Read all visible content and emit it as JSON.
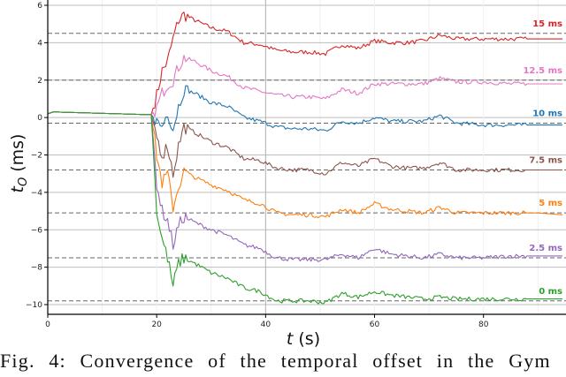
{
  "chart_data": {
    "type": "line",
    "title": "",
    "xlabel": "t (s)",
    "ylabel": "t_O (ms)",
    "xlim": [
      0,
      94.5
    ],
    "ylim": [
      -10.5,
      6.1
    ],
    "xticks": [
      0,
      20,
      40,
      60,
      80
    ],
    "yticks": [
      6,
      4,
      2,
      0,
      -2,
      -4,
      -6,
      -8,
      -10
    ],
    "grid": true,
    "legend": "inline labels at right edge",
    "x": [
      0,
      1,
      19,
      20,
      21,
      22,
      23,
      24,
      25,
      27,
      30,
      33,
      36,
      39,
      42,
      45,
      48,
      51,
      54,
      57,
      60,
      63,
      66,
      69,
      72,
      75,
      80,
      85,
      90,
      94.5
    ],
    "series": [
      {
        "name": "15 ms",
        "color": "#d62728",
        "target": 4.5,
        "values": [
          0.2,
          0.3,
          0.15,
          1.2,
          2.5,
          3.0,
          4.2,
          5.2,
          5.5,
          5.2,
          4.8,
          4.6,
          4.0,
          3.9,
          3.6,
          3.5,
          3.5,
          3.4,
          3.9,
          3.7,
          4.1,
          4.0,
          4.0,
          4.1,
          4.4,
          4.2,
          4.2,
          4.2,
          4.2,
          4.2
        ]
      },
      {
        "name": "12.5 ms",
        "color": "#e377c2",
        "target": 2.0,
        "values": [
          0.2,
          0.3,
          0.15,
          0.5,
          1.3,
          1.8,
          2.0,
          2.7,
          3.2,
          3.0,
          2.5,
          2.2,
          1.6,
          1.4,
          1.2,
          1.1,
          1.1,
          1.0,
          1.5,
          1.3,
          1.8,
          1.8,
          1.8,
          1.8,
          2.1,
          1.9,
          1.9,
          1.8,
          1.8,
          1.8
        ]
      },
      {
        "name": "10 ms",
        "color": "#1f77b4",
        "target": -0.3,
        "values": [
          0.2,
          0.3,
          0.15,
          -0.2,
          -0.5,
          0.3,
          -0.6,
          0.6,
          1.5,
          1.3,
          0.8,
          0.6,
          0.0,
          -0.2,
          -0.5,
          -0.6,
          -0.6,
          -0.7,
          -0.2,
          -0.3,
          0.0,
          -0.2,
          -0.2,
          -0.2,
          0.1,
          -0.3,
          -0.4,
          -0.4,
          -0.4,
          -0.4
        ]
      },
      {
        "name": "7.5 ms",
        "color": "#8c564b",
        "target": -2.8,
        "values": [
          0.2,
          0.3,
          0.15,
          -1.0,
          -2.0,
          -1.5,
          -3.0,
          -1.5,
          -0.5,
          -0.8,
          -1.3,
          -1.6,
          -2.2,
          -2.3,
          -2.7,
          -2.8,
          -2.8,
          -3.0,
          -2.4,
          -2.6,
          -2.2,
          -2.6,
          -2.7,
          -2.7,
          -2.4,
          -2.8,
          -2.8,
          -2.8,
          -2.8,
          -2.8
        ]
      },
      {
        "name": "5 ms",
        "color": "#ff7f0e",
        "target": -5.1,
        "values": [
          0.2,
          0.3,
          0.15,
          -2.0,
          -3.5,
          -3.0,
          -4.8,
          -3.7,
          -2.9,
          -3.2,
          -3.6,
          -3.9,
          -4.4,
          -4.6,
          -5.1,
          -5.2,
          -5.2,
          -5.3,
          -4.9,
          -5.1,
          -4.6,
          -4.9,
          -5.0,
          -5.1,
          -4.8,
          -5.1,
          -5.1,
          -5.1,
          -5.1,
          -5.2
        ]
      },
      {
        "name": "2.5 ms",
        "color": "#9467bd",
        "target": -7.5,
        "values": [
          0.2,
          0.3,
          0.15,
          -3.5,
          -5.0,
          -5.5,
          -6.8,
          -5.8,
          -5.3,
          -5.6,
          -6.0,
          -6.3,
          -6.8,
          -7.0,
          -7.5,
          -7.6,
          -7.6,
          -7.6,
          -7.3,
          -7.5,
          -7.0,
          -7.3,
          -7.4,
          -7.5,
          -7.3,
          -7.5,
          -7.5,
          -7.4,
          -7.4,
          -7.4
        ]
      },
      {
        "name": "0 ms",
        "color": "#2ca02c",
        "target": -9.8,
        "values": [
          0.2,
          0.3,
          0.15,
          -5.0,
          -6.5,
          -7.5,
          -9.0,
          -7.8,
          -7.5,
          -7.8,
          -8.3,
          -8.6,
          -9.1,
          -9.3,
          -9.8,
          -9.8,
          -9.8,
          -9.9,
          -9.4,
          -9.6,
          -9.3,
          -9.5,
          -9.6,
          -9.7,
          -9.6,
          -9.7,
          -9.7,
          -9.7,
          -9.7,
          -9.7
        ]
      }
    ]
  },
  "axes": {
    "xlabel_t": "t",
    "xlabel_unit": " (s)",
    "ylabel_t": "t",
    "ylabel_sub": "O",
    "ylabel_unit": " (ms)",
    "xtick_labels": [
      "0",
      "20",
      "40",
      "60",
      "80"
    ],
    "ytick_labels": [
      "6",
      "4",
      "2",
      "0",
      "−2",
      "−4",
      "−6",
      "−8",
      "−10"
    ]
  },
  "caption": "Fig. 4: Convergence of the temporal offset in the Gym"
}
